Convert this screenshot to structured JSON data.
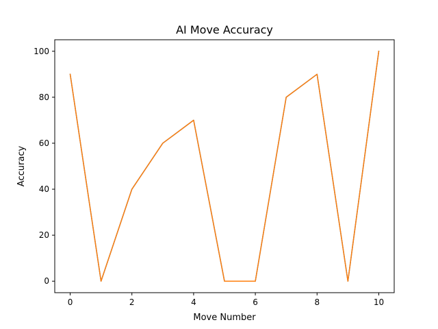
{
  "chart_data": {
    "type": "line",
    "title": "AI Move Accuracy",
    "xlabel": "Move Number",
    "ylabel": "Accuracy",
    "xlim": [
      -0.5,
      10.5
    ],
    "ylim": [
      -5,
      105
    ],
    "x_ticks": [
      0,
      2,
      4,
      6,
      8,
      10
    ],
    "y_ticks": [
      0,
      20,
      40,
      60,
      80,
      100
    ],
    "grid": false,
    "series": [
      {
        "color": "#1f77b4",
        "x": [
          0,
          1,
          2,
          3,
          4,
          5,
          6,
          7,
          8,
          9,
          10
        ],
        "y": [
          90,
          0,
          40,
          60,
          70,
          0,
          0,
          80,
          90,
          0,
          100
        ]
      },
      {
        "color": "#ff7f0e",
        "x": [
          0,
          1,
          2,
          3,
          4,
          5,
          6,
          7,
          8,
          9,
          10
        ],
        "y": [
          90,
          0,
          40,
          60,
          70,
          0,
          0,
          80,
          90,
          0,
          100
        ]
      }
    ]
  }
}
